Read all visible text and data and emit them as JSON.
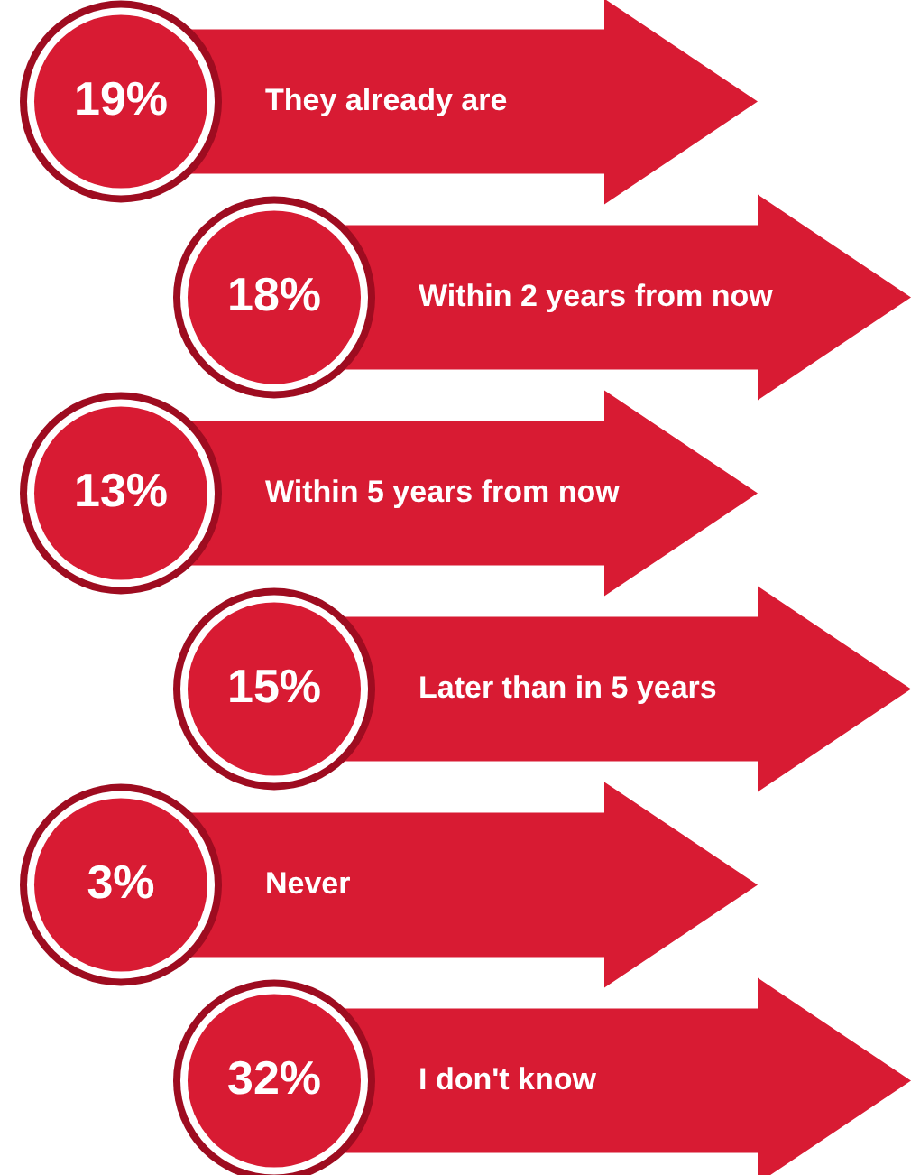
{
  "chart_data": {
    "type": "other",
    "categories": [
      "They already are",
      "Within 2 years from now",
      "Within 5 years from now",
      "Later than in 5 years",
      "Never",
      "I don't know"
    ],
    "values": [
      19,
      18,
      13,
      15,
      3,
      32
    ],
    "value_labels": [
      "19%",
      "18%",
      "13%",
      "15%",
      "3%",
      "32%"
    ],
    "color": "#d81b33"
  }
}
